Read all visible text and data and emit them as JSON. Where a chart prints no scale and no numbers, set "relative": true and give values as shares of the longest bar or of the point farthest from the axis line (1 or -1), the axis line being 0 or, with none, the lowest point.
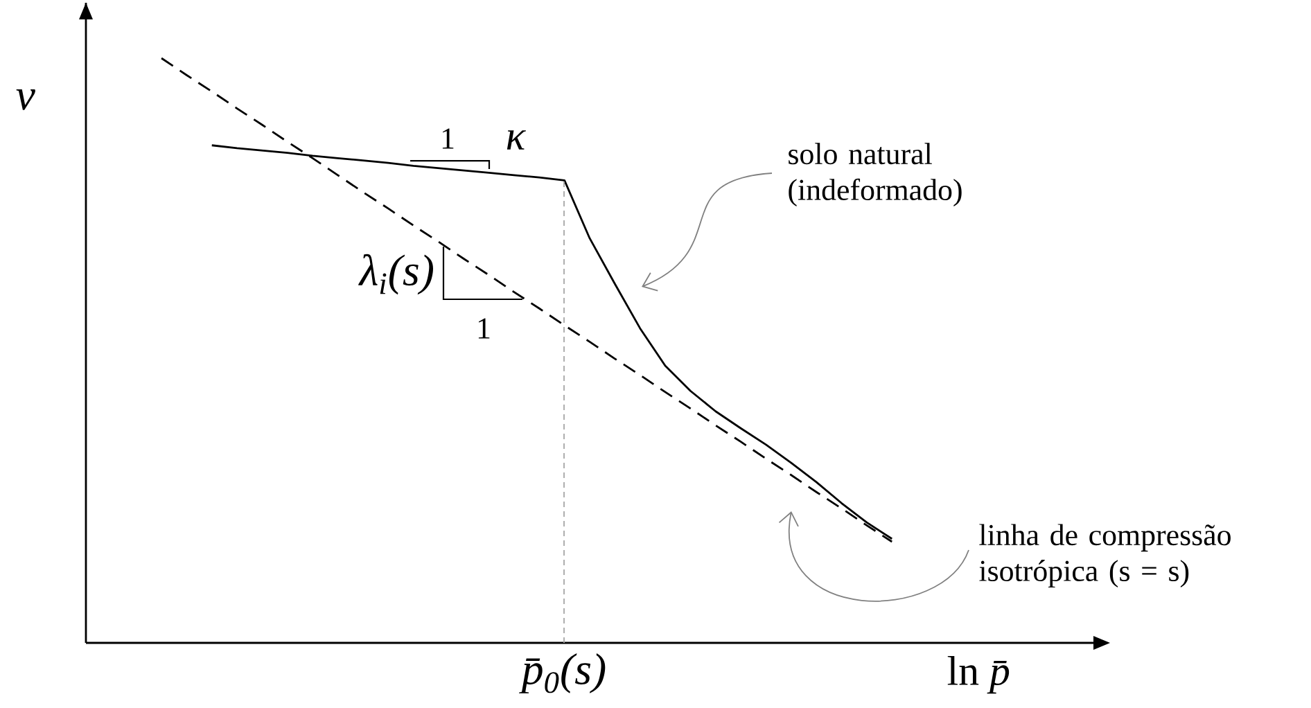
{
  "chart_data": {
    "type": "line",
    "relative": true,
    "xlabel": "ln *p̄*",
    "ylabel": "v",
    "categories": [
      null,
      null,
      null,
      null,
      null,
      null,
      null,
      null,
      null,
      null,
      null,
      null,
      null,
      null,
      null,
      null,
      null,
      null,
      null,
      null,
      null,
      null,
      null,
      null,
      null,
      null,
      null,
      null,
      null,
      null,
      null,
      null,
      null,
      null,
      null,
      null,
      null,
      null,
      null,
      null,
      null
    ],
    "series": [
      {
        "color": "#000000",
        "line_style": "dashed",
        "values": [
          null,
          null,
          null,
          1.0,
          0.971,
          0.943,
          0.914,
          0.886,
          0.857,
          0.829,
          0.8,
          0.771,
          0.743,
          0.714,
          0.686,
          0.657,
          0.629,
          0.6,
          0.572,
          0.543,
          0.515,
          0.486,
          0.458,
          0.429,
          0.401,
          0.372,
          0.344,
          0.315,
          0.287,
          0.258,
          0.23,
          0.201,
          0.173,
          null,
          null,
          null,
          null,
          null,
          null,
          null,
          null
        ]
      },
      {
        "color": "#000000",
        "line_style": "solid",
        "values": [
          null,
          null,
          null,
          null,
          null,
          0.851,
          0.846,
          0.842,
          0.838,
          0.833,
          0.829,
          0.825,
          0.821,
          0.816,
          0.812,
          0.808,
          0.804,
          0.8,
          0.796,
          0.791,
          0.692,
          0.614,
          0.538,
          0.474,
          0.431,
          0.396,
          0.367,
          0.339,
          0.308,
          0.275,
          0.239,
          0.206,
          0.178,
          null,
          null,
          null,
          null,
          null,
          null,
          null,
          null
        ]
      }
    ],
    "annotations": [
      "p̄$_{0}$(s)",
      "1",
      "κ",
      "λ$_{i}$(s)",
      "1",
      "solo natural (indeformado)",
      "linha de compressão isotrópica (s = s)"
    ]
  }
}
